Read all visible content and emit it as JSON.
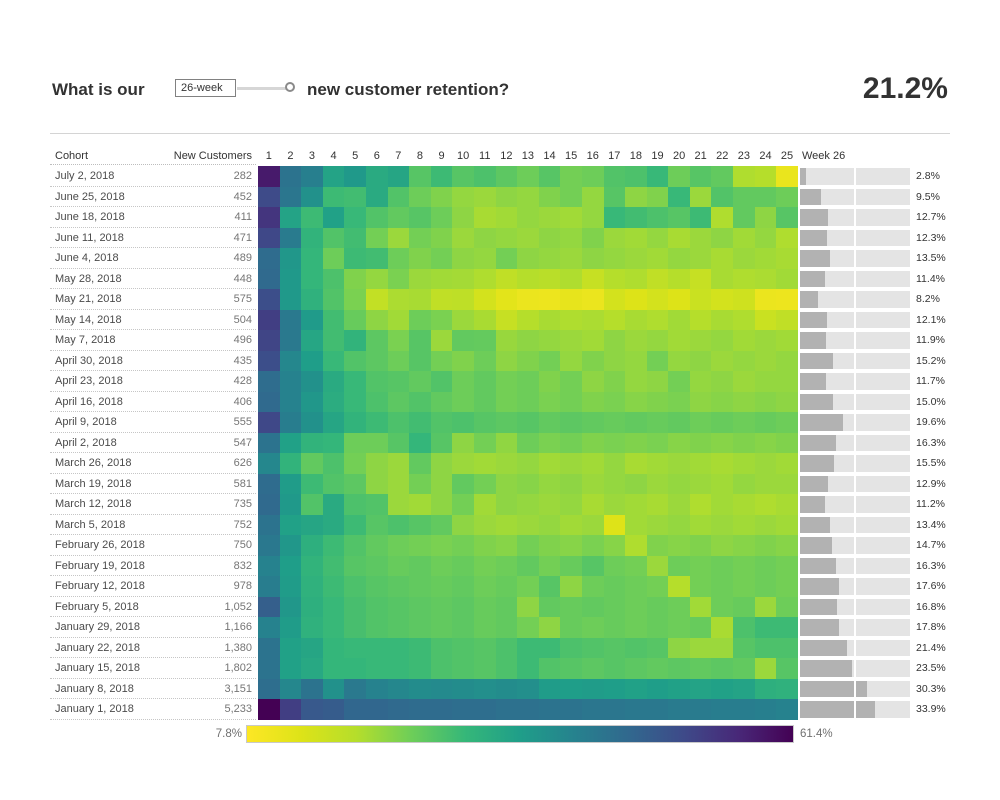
{
  "title": {
    "prefix": "What is our",
    "parameter_value": "26-week",
    "suffix": "new customer retention?",
    "kpi": "21.2%"
  },
  "table": {
    "cohort_header": "Cohort",
    "customers_header": "New Customers",
    "week26_header": "Week 26",
    "week_numbers": [
      1,
      2,
      3,
      4,
      5,
      6,
      7,
      8,
      9,
      10,
      11,
      12,
      13,
      14,
      15,
      16,
      17,
      18,
      19,
      20,
      21,
      22,
      23,
      24,
      25
    ]
  },
  "legend": {
    "min_label": "7.8%",
    "max_label": "61.4%"
  },
  "colors": {
    "viridis_reversed_stops": [
      "#fde725",
      "#dde318",
      "#b5de2b",
      "#6ece58",
      "#35b779",
      "#1f9e89",
      "#26828e",
      "#31688e",
      "#3e4a89",
      "#482878",
      "#440154"
    ],
    "bar_fill": "#b2b2b2",
    "bar_track": "#e4e4e4",
    "text_dark": "#323232"
  },
  "scale": {
    "value_min": 7.8,
    "value_max": 61.4,
    "bar_axis_max": 50,
    "bar_gridline_pct": 25
  },
  "rows": [
    {
      "cohort": "July 2, 2018",
      "customers": "282",
      "week26_label": "2.8%"
    },
    {
      "cohort": "June 25, 2018",
      "customers": "452",
      "week26_label": "9.5%"
    },
    {
      "cohort": "June 18, 2018",
      "customers": "411",
      "week26_label": "12.7%"
    },
    {
      "cohort": "June 11, 2018",
      "customers": "471",
      "week26_label": "12.3%"
    },
    {
      "cohort": "June 4, 2018",
      "customers": "489",
      "week26_label": "13.5%"
    },
    {
      "cohort": "May 28, 2018",
      "customers": "448",
      "week26_label": "11.4%"
    },
    {
      "cohort": "May 21, 2018",
      "customers": "575",
      "week26_label": "8.2%"
    },
    {
      "cohort": "May 14, 2018",
      "customers": "504",
      "week26_label": "12.1%"
    },
    {
      "cohort": "May 7, 2018",
      "customers": "496",
      "week26_label": "11.9%"
    },
    {
      "cohort": "April 30, 2018",
      "customers": "435",
      "week26_label": "15.2%"
    },
    {
      "cohort": "April 23, 2018",
      "customers": "428",
      "week26_label": "11.7%"
    },
    {
      "cohort": "April 16, 2018",
      "customers": "406",
      "week26_label": "15.0%"
    },
    {
      "cohort": "April 9, 2018",
      "customers": "555",
      "week26_label": "19.6%"
    },
    {
      "cohort": "April 2, 2018",
      "customers": "547",
      "week26_label": "16.3%"
    },
    {
      "cohort": "March 26, 2018",
      "customers": "626",
      "week26_label": "15.5%"
    },
    {
      "cohort": "March 19, 2018",
      "customers": "581",
      "week26_label": "12.9%"
    },
    {
      "cohort": "March 12, 2018",
      "customers": "735",
      "week26_label": "11.2%"
    },
    {
      "cohort": "March 5, 2018",
      "customers": "752",
      "week26_label": "13.4%"
    },
    {
      "cohort": "February 26, 2018",
      "customers": "750",
      "week26_label": "14.7%"
    },
    {
      "cohort": "February 19, 2018",
      "customers": "832",
      "week26_label": "16.3%"
    },
    {
      "cohort": "February 12, 2018",
      "customers": "978",
      "week26_label": "17.6%"
    },
    {
      "cohort": "February 5, 2018",
      "customers": "1,052",
      "week26_label": "16.8%"
    },
    {
      "cohort": "January 29, 2018",
      "customers": "1,166",
      "week26_label": "17.8%"
    },
    {
      "cohort": "January 22, 2018",
      "customers": "1,380",
      "week26_label": "21.4%"
    },
    {
      "cohort": "January 15, 2018",
      "customers": "1,802",
      "week26_label": "23.5%"
    },
    {
      "cohort": "January 8, 2018",
      "customers": "3,151",
      "week26_label": "30.3%"
    },
    {
      "cohort": "January 1, 2018",
      "customers": "5,233",
      "week26_label": "33.9%"
    }
  ],
  "chart_data": {
    "type": "heatmap",
    "title": "What is our 26-week new customer retention?",
    "kpi_value": "21.2%",
    "legend_min": 7.8,
    "legend_max": 61.4,
    "color_scale": "viridis reversed (yellow = low retention, dark purple = high retention)",
    "weeks": [
      1,
      2,
      3,
      4,
      5,
      6,
      7,
      8,
      9,
      10,
      11,
      12,
      13,
      14,
      15,
      16,
      17,
      18,
      19,
      20,
      21,
      22,
      23,
      24,
      25
    ],
    "cohorts": [
      "July 2, 2018",
      "June 25, 2018",
      "June 18, 2018",
      "June 11, 2018",
      "June 4, 2018",
      "May 28, 2018",
      "May 21, 2018",
      "May 14, 2018",
      "May 7, 2018",
      "April 30, 2018",
      "April 23, 2018",
      "April 16, 2018",
      "April 9, 2018",
      "April 2, 2018",
      "March 26, 2018",
      "March 19, 2018",
      "March 12, 2018",
      "March 5, 2018",
      "February 26, 2018",
      "February 19, 2018",
      "February 12, 2018",
      "February 5, 2018",
      "January 29, 2018",
      "January 22, 2018",
      "January 15, 2018",
      "January 8, 2018",
      "January 1, 2018"
    ],
    "new_customers": [
      282,
      452,
      411,
      471,
      489,
      448,
      575,
      504,
      496,
      435,
      428,
      406,
      555,
      547,
      626,
      581,
      735,
      752,
      750,
      832,
      978,
      1052,
      1166,
      1380,
      1802,
      3151,
      5233
    ],
    "week26_retention_pct": [
      2.8,
      9.5,
      12.7,
      12.3,
      13.5,
      11.4,
      8.2,
      12.1,
      11.9,
      15.2,
      11.7,
      15.0,
      19.6,
      16.3,
      15.5,
      12.9,
      11.2,
      13.4,
      14.7,
      16.3,
      17.6,
      16.8,
      17.8,
      21.4,
      23.5,
      30.3,
      33.9
    ],
    "bar_axis": {
      "min": 0,
      "max": 50,
      "gridline": 25
    },
    "retention_pct_estimated_from_color": [
      [
        58,
        43,
        40.5,
        33.5,
        35.5,
        32,
        33,
        26,
        28.5,
        26,
        27,
        25.5,
        24,
        26,
        23.5,
        24,
        26.5,
        27,
        29,
        24,
        26,
        25,
        19,
        18.5,
        11
      ],
      [
        50.5,
        42.5,
        37,
        28.5,
        28,
        32,
        26.5,
        24,
        22.5,
        21,
        20.5,
        21.5,
        21,
        22.5,
        23.5,
        21,
        26,
        21.5,
        22.5,
        29,
        20.5,
        26.5,
        25,
        25,
        24
      ],
      [
        54,
        33.5,
        28.5,
        34,
        29,
        26.5,
        25,
        26,
        24,
        21.5,
        19.5,
        20,
        21,
        20.5,
        20,
        21,
        29,
        28,
        27,
        26,
        28.5,
        19,
        25,
        21.5,
        26
      ],
      [
        51,
        41.5,
        30,
        26.5,
        28,
        23.5,
        20.5,
        23.5,
        22.5,
        20.5,
        21.5,
        21,
        20.5,
        21.5,
        21,
        22.5,
        20.5,
        20,
        21,
        19.5,
        20.5,
        21.5,
        20,
        21,
        19
      ],
      [
        44.5,
        36,
        29.5,
        24,
        28.5,
        28,
        24,
        22.5,
        23.5,
        21.5,
        21,
        23.5,
        21.5,
        21,
        20.5,
        21.5,
        21,
        20.5,
        20,
        21,
        20.5,
        19.5,
        20.5,
        20,
        19.5
      ],
      [
        45,
        35.5,
        29.5,
        27,
        22.5,
        21,
        23,
        20.5,
        20,
        19.8,
        19,
        17,
        18.5,
        18,
        19,
        16.3,
        18.5,
        19,
        17,
        18.5,
        16.3,
        19.5,
        19,
        19.3,
        20
      ],
      [
        50,
        35.5,
        30.5,
        26.5,
        23,
        16.8,
        19.2,
        19.5,
        17,
        17.3,
        14.5,
        12.2,
        10.8,
        10.5,
        11.5,
        10.8,
        14.5,
        13.2,
        14.5,
        13.2,
        15.8,
        14.5,
        15.2,
        10.8,
        10.5
      ],
      [
        52.5,
        41.8,
        35.2,
        28,
        24.5,
        21.5,
        20,
        24,
        23,
        20.5,
        19.4,
        16.3,
        18.5,
        19.5,
        19,
        19.3,
        18.5,
        19.5,
        19,
        20,
        18.5,
        19.5,
        19,
        15.8,
        17
      ],
      [
        51.5,
        41.8,
        32.8,
        28,
        30,
        25.5,
        23,
        26,
        20.5,
        25,
        24.8,
        20.7,
        21.5,
        21,
        20.5,
        20,
        21.5,
        20.5,
        21,
        20,
        20.5,
        21,
        20,
        20.5,
        20
      ],
      [
        50,
        39,
        34.6,
        29,
        26.5,
        25.5,
        24,
        26,
        23.5,
        22.5,
        24,
        21.5,
        22.5,
        23.5,
        21,
        22.5,
        21.5,
        21,
        23.5,
        21,
        21.5,
        20.5,
        21,
        20.5,
        21
      ],
      [
        44.3,
        40,
        37,
        32,
        29,
        26.5,
        26,
        25,
        26.5,
        24,
        25,
        23.5,
        24,
        22.5,
        23.5,
        21.5,
        22.5,
        21,
        21.5,
        23.5,
        21,
        21.5,
        20.5,
        21,
        21
      ],
      [
        45,
        40,
        36,
        31.5,
        29,
        27,
        25.5,
        26.5,
        25,
        24,
        25,
        23.5,
        24,
        23,
        23.5,
        22.5,
        23,
        22,
        22.5,
        23,
        21.5,
        22,
        21.5,
        22,
        21.5
      ],
      [
        51,
        41,
        37,
        33,
        30,
        28.5,
        27,
        28,
        26.5,
        27,
        26,
        25.5,
        26,
        25,
        25.5,
        25,
        24.5,
        25,
        24.5,
        25,
        24,
        24.5,
        24,
        24.5,
        24
      ],
      [
        43,
        34,
        30,
        29.5,
        24,
        24,
        26,
        29.5,
        26,
        21.5,
        23.5,
        21.3,
        24,
        23,
        23.5,
        22.5,
        23,
        22.5,
        23,
        22,
        22.5,
        22,
        22.5,
        22,
        22.5
      ],
      [
        39,
        30,
        25,
        27,
        23.5,
        21.5,
        20.5,
        25,
        21.5,
        20.5,
        20,
        20.5,
        21,
        20,
        20.5,
        20,
        21,
        19.5,
        20,
        20.5,
        20,
        19.5,
        20,
        20.5,
        20
      ],
      [
        44.5,
        35,
        28.5,
        26.5,
        25.5,
        21.5,
        20.5,
        23.5,
        21.5,
        25,
        23.5,
        21.5,
        22,
        21,
        21.5,
        20.5,
        21,
        21.5,
        20.5,
        21,
        20.5,
        20,
        21,
        20.5,
        20.5
      ],
      [
        45,
        35.5,
        26.5,
        32,
        27,
        26.5,
        20.5,
        20,
        21.5,
        23.5,
        20,
        21.5,
        21,
        20.5,
        21,
        19.5,
        20.5,
        20,
        19.5,
        20.5,
        19,
        20,
        19.5,
        19,
        19.5
      ],
      [
        43,
        34,
        33,
        32,
        28.5,
        26,
        27,
        26,
        25,
        21.5,
        20.5,
        20,
        20.5,
        21,
        20,
        20.5,
        13,
        20,
        20.5,
        21,
        20,
        20.5,
        20,
        20.5,
        20
      ],
      [
        42,
        36,
        31,
        28.5,
        26.5,
        25,
        24,
        23.5,
        23,
        23.5,
        22.5,
        22,
        23.5,
        22.5,
        22,
        23,
        22,
        19,
        22.5,
        22,
        22.5,
        21.5,
        22,
        22.5,
        22
      ],
      [
        40,
        34.5,
        30,
        28,
        26,
        25.5,
        24.5,
        25,
        24,
        24.5,
        23.5,
        24,
        25,
        23.5,
        24.5,
        26,
        24,
        23.5,
        20.5,
        24,
        23.5,
        24,
        23.5,
        24,
        23.5
      ],
      [
        41,
        35,
        30.5,
        28.5,
        27,
        26,
        25.5,
        25,
        24.5,
        25,
        24,
        24.5,
        23.5,
        26,
        21.5,
        24,
        24.5,
        24,
        23.5,
        18.5,
        23.5,
        24,
        23.5,
        24,
        23.5
      ],
      [
        47,
        36,
        31,
        29,
        27.5,
        26.5,
        26,
        25.5,
        25,
        25.5,
        24.5,
        25,
        21.5,
        25,
        24.5,
        25,
        24.5,
        24,
        24.5,
        24,
        20,
        24,
        24.5,
        20.5,
        24
      ],
      [
        40,
        35,
        30.5,
        29,
        27.5,
        26.5,
        26,
        25.5,
        25,
        25.5,
        24.5,
        25,
        23.5,
        21.5,
        24.5,
        24,
        24.5,
        24,
        24.5,
        24,
        24.5,
        19.4,
        27,
        28.5,
        28.5
      ],
      [
        43,
        34,
        33,
        29.5,
        29,
        29,
        29,
        28.5,
        27,
        26.5,
        26,
        27,
        28.5,
        28.5,
        27,
        26.5,
        26,
        26.5,
        26,
        21.5,
        20.5,
        20.5,
        26,
        27,
        27
      ],
      [
        43,
        34,
        32.5,
        29.5,
        29.5,
        29,
        29,
        28.5,
        27,
        26.5,
        26,
        27,
        28.5,
        26.5,
        26,
        25.5,
        26,
        25.5,
        25,
        25.5,
        25,
        25.5,
        25,
        20.5,
        26
      ],
      [
        44,
        39,
        43,
        37,
        41.8,
        40,
        39,
        38,
        38.5,
        38,
        37.5,
        38,
        37.5,
        35,
        34.5,
        35,
        34.5,
        34,
        34.5,
        34,
        33.5,
        34,
        33.5,
        31,
        30.5
      ],
      [
        61.4,
        52.5,
        48,
        47.5,
        45.5,
        45.5,
        45,
        44.5,
        44.5,
        44,
        44,
        43.5,
        43.5,
        43,
        43,
        42.5,
        42.5,
        42,
        42,
        41.5,
        41.5,
        41,
        41,
        40.5,
        40
      ]
    ]
  }
}
